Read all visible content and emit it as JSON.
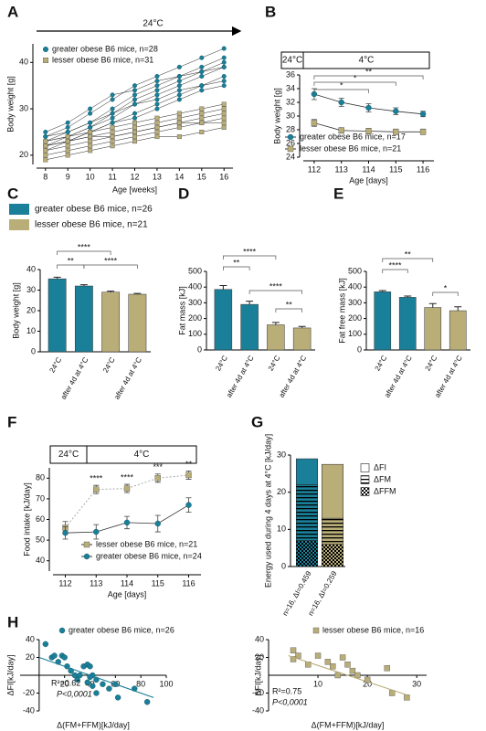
{
  "chart_data": [
    {
      "panel": "A",
      "type": "spaghetti",
      "annotation": "24°C",
      "xlabel": "Age [weeks]",
      "ylabel": "Body weight [g]",
      "x": [
        8,
        9,
        10,
        11,
        12,
        13,
        14,
        15,
        16
      ],
      "xlim": [
        7.6,
        16.4
      ],
      "xticks": [
        8,
        9,
        10,
        11,
        12,
        13,
        14,
        15,
        16
      ],
      "ylim": [
        18,
        44
      ],
      "yticks": [
        20,
        30,
        40
      ],
      "groups": [
        {
          "name": "greater obese B6 mice, n=28",
          "color": "#1a7f98",
          "marker": "circle",
          "individuals": [
            [
              24,
              26,
              29,
              32,
              35,
              37,
              39,
              41,
              43
            ],
            [
              23,
              25,
              27,
              30,
              33,
              35,
              37,
              39,
              41
            ],
            [
              22,
              24,
              26,
              28,
              31,
              33,
              35,
              37,
              39
            ],
            [
              25,
              27,
              30,
              33,
              34,
              36,
              37,
              38,
              39
            ],
            [
              21,
              23,
              25,
              27,
              29,
              31,
              33,
              35,
              37
            ],
            [
              23,
              24,
              26,
              29,
              32,
              34,
              36,
              38,
              40
            ],
            [
              22,
              23,
              25,
              27,
              28,
              30,
              32,
              34,
              35
            ],
            [
              24,
              25,
              27,
              29,
              31,
              32,
              34,
              35,
              36
            ]
          ]
        },
        {
          "name": "lesser obese B6 mice, n=31",
          "color": "#b9ad78",
          "marker": "square",
          "individuals": [
            [
              22,
              23,
              24,
              25,
              26,
              27,
              28,
              29,
              30
            ],
            [
              21,
              22,
              23,
              24,
              25,
              26,
              27,
              27,
              28
            ],
            [
              20,
              21,
              22,
              23,
              24,
              25,
              26,
              27,
              27
            ],
            [
              23,
              24,
              25,
              26,
              27,
              28,
              29,
              30,
              31
            ],
            [
              19,
              20,
              21,
              22,
              23,
              24,
              24,
              25,
              26
            ],
            [
              22,
              23,
              24,
              24,
              25,
              26,
              27,
              28,
              29
            ]
          ]
        }
      ]
    },
    {
      "panel": "B",
      "type": "line",
      "temperature_labels": [
        "24°C",
        "4°C"
      ],
      "xlabel": "Age [days]",
      "ylabel": "Body weight [g]",
      "x": [
        112,
        113,
        114,
        115,
        116
      ],
      "xlim": [
        111.6,
        116.4
      ],
      "xticks": [
        112,
        113,
        114,
        115,
        116
      ],
      "ylim": [
        24,
        36
      ],
      "yticks": [
        24,
        26,
        28,
        30,
        32,
        34,
        36
      ],
      "significance": [
        "*",
        "*",
        "**"
      ],
      "series": [
        {
          "name": "greater obese B6 mice, n=17",
          "color": "#1a7f98",
          "marker": "circle",
          "values": [
            33.2,
            32.0,
            31.2,
            30.7,
            30.3
          ],
          "errors": [
            0.8,
            0.6,
            0.6,
            0.5,
            0.4
          ]
        },
        {
          "name": "lesser obese B6 mice, n=21",
          "color": "#b9ad78",
          "marker": "square",
          "values": [
            29.0,
            27.9,
            27.8,
            27.7,
            27.7
          ],
          "errors": [
            0.5,
            0.4,
            0.4,
            0.4,
            0.4
          ]
        }
      ]
    },
    {
      "panel": "C",
      "type": "bar",
      "ylabel": "Body weight [g]",
      "categories": [
        "24°C",
        "after 4d at 4°C",
        "24°C",
        "after 4d at 4°C"
      ],
      "values": [
        35.5,
        32,
        29,
        28
      ],
      "errors": [
        0.8,
        0.6,
        0.5,
        0.4
      ],
      "colors": [
        "#1a7f98",
        "#1a7f98",
        "#b9ad78",
        "#b9ad78"
      ],
      "ylim": [
        0,
        40
      ],
      "yticks": [
        0,
        10,
        20,
        30,
        40
      ],
      "significance": [
        "****",
        "**",
        "****"
      ],
      "legend": [
        {
          "name": "greater obese B6 mice, n=26",
          "color": "#1a7f98"
        },
        {
          "name": "lesser obese B6 mice, n=21",
          "color": "#b9ad78"
        }
      ]
    },
    {
      "panel": "D",
      "type": "bar",
      "ylabel": "Fat mass [kJ]",
      "categories": [
        "24°C",
        "after 4d at 4°C",
        "24°C",
        "after 4d at 4°C"
      ],
      "values": [
        385,
        290,
        160,
        140
      ],
      "errors": [
        25,
        20,
        15,
        10
      ],
      "colors": [
        "#1a7f98",
        "#1a7f98",
        "#b9ad78",
        "#b9ad78"
      ],
      "ylim": [
        0,
        500
      ],
      "yticks": [
        0,
        100,
        200,
        300,
        400,
        500
      ],
      "significance": [
        "****",
        "**",
        "****",
        "**"
      ]
    },
    {
      "panel": "E",
      "type": "bar",
      "ylabel": "Fat free mass [kJ]",
      "categories": [
        "24°C",
        "after 4d at 4°C",
        "24°C",
        "after 4d at 4°C"
      ],
      "values": [
        370,
        335,
        270,
        250
      ],
      "errors": [
        8,
        8,
        25,
        25
      ],
      "colors": [
        "#1a7f98",
        "#1a7f98",
        "#b9ad78",
        "#b9ad78"
      ],
      "ylim": [
        0,
        500
      ],
      "yticks": [
        0,
        100,
        200,
        300,
        400,
        500
      ],
      "significance": [
        "**",
        "****",
        "*"
      ]
    },
    {
      "panel": "F",
      "type": "line",
      "temperature_labels": [
        "24°C",
        "4°C"
      ],
      "xlabel": "Age [days]",
      "ylabel": "Food intake [kJ/day]",
      "x": [
        112,
        113,
        114,
        115,
        116
      ],
      "xlim": [
        111.6,
        116.4
      ],
      "xticks": [
        112,
        113,
        114,
        115,
        116
      ],
      "ylim": [
        35,
        85
      ],
      "yticks": [
        40,
        50,
        60,
        70,
        80
      ],
      "significance": [
        null,
        "****",
        "****",
        "***",
        "**"
      ],
      "series": [
        {
          "name": "lesser obese B6 mice, n=21",
          "color": "#b9ad78",
          "marker": "square",
          "line_style": "dotted",
          "values": [
            56,
            74.5,
            75,
            80,
            81.5
          ],
          "errors": [
            3,
            2,
            2,
            2,
            2
          ]
        },
        {
          "name": "greater obese B6 mice, n=24",
          "color": "#1a7f98",
          "marker": "circle",
          "values": [
            53.5,
            54,
            58.5,
            58,
            67
          ],
          "errors": [
            3,
            3.5,
            3,
            4,
            3.5
          ]
        }
      ]
    },
    {
      "panel": "G",
      "type": "stacked_bar",
      "ylabel": "Energy used during 4 days at 4°C [kJ/day]",
      "categories": [
        "n=16, ΔI=0.459",
        "n=16, ΔI=0.259"
      ],
      "colors": [
        "#1a7f98",
        "#b9ad78"
      ],
      "ylim": [
        0,
        30
      ],
      "yticks": [
        0,
        10,
        20,
        30
      ],
      "series": [
        {
          "name": "ΔFFM",
          "pattern": "checker",
          "values": [
            7,
            6
          ]
        },
        {
          "name": "ΔFM",
          "pattern": "stripes",
          "values": [
            15,
            7
          ]
        },
        {
          "name": "ΔFI",
          "pattern": "plain",
          "values": [
            7,
            14.5
          ]
        }
      ]
    },
    {
      "panel": "H",
      "type": "scatter",
      "xlabel": "Δ(FM+FFM)[kJ/day]",
      "ylabel": "ΔFI[kJ/day]",
      "xlim": [
        -15,
        100
      ],
      "xticks": [
        20,
        40,
        60,
        80,
        100
      ],
      "ylim": [
        -40,
        40
      ],
      "yticks": [
        -40,
        -20,
        20,
        40
      ],
      "r2": "R²=0.62",
      "p_value": "P<0,0001",
      "series": [
        {
          "name": "greater obese B6 mice, n=26",
          "color": "#1a7f98",
          "marker": "circle",
          "x": [
            5,
            10,
            12,
            15,
            18,
            20,
            22,
            25,
            28,
            30,
            32,
            35,
            38,
            40,
            42,
            45,
            40,
            38,
            42,
            45,
            50,
            55,
            60,
            62,
            75,
            85
          ],
          "y": [
            35,
            20,
            22,
            15,
            22,
            20,
            10,
            5,
            0,
            -5,
            0,
            10,
            12,
            10,
            0,
            -5,
            -2,
            -8,
            -12,
            -20,
            -10,
            -15,
            -10,
            -25,
            -15,
            -30
          ]
        }
      ],
      "fit": {
        "x": [
          0,
          90
        ],
        "y": [
          20,
          -25
        ]
      }
    },
    {
      "type": "scatter",
      "xlabel": "Δ(FM+FFM)[kJ/day]",
      "ylabel": "ΔFI[kJ/day]",
      "xlim": [
        0,
        32
      ],
      "xticks": [
        10,
        20,
        30
      ],
      "ylim": [
        -40,
        40
      ],
      "yticks": [
        -40,
        -20,
        20,
        40
      ],
      "r2": "R²=0.75",
      "p_value": "P<0,0001",
      "series": [
        {
          "name": "lesser obese B6 mice, n=16",
          "color": "#b9ad78",
          "marker": "square",
          "x": [
            5,
            6,
            5,
            8,
            10,
            12,
            15,
            13,
            16,
            17,
            14,
            18,
            20,
            24,
            25,
            28
          ],
          "y": [
            28,
            22,
            18,
            12,
            22,
            15,
            20,
            10,
            12,
            5,
            0,
            0,
            -5,
            8,
            -20,
            -25
          ]
        }
      ],
      "fit": {
        "x": [
          4,
          28
        ],
        "y": [
          22,
          -22
        ]
      }
    }
  ]
}
